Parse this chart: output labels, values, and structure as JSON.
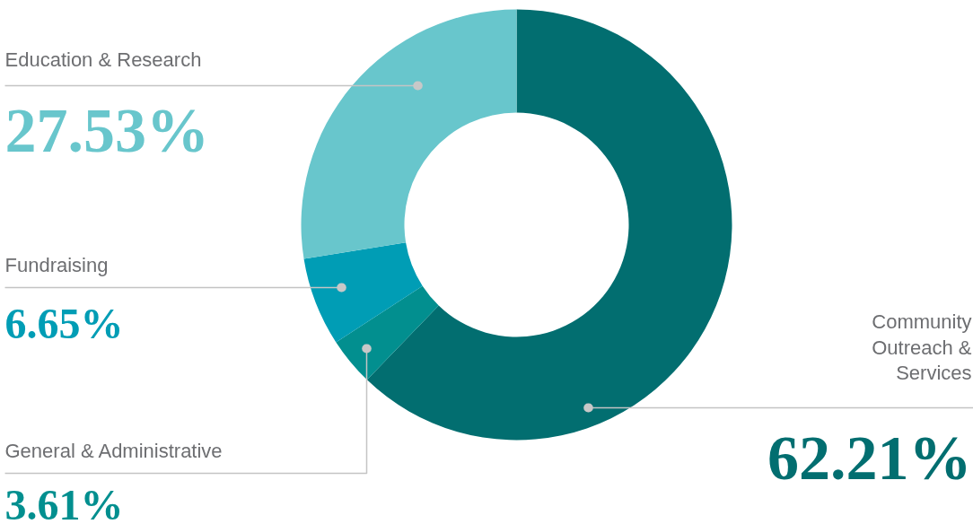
{
  "chart_data": {
    "type": "donut",
    "categories": [
      "Community Outreach & Services",
      "General & Administrative",
      "Fundraising",
      "Education & Research"
    ],
    "values": [
      62.21,
      3.61,
      6.65,
      27.53
    ],
    "colors": [
      "#026e70",
      "#028f8f",
      "#009db5",
      "#68c6cc"
    ],
    "value_labels": [
      "62.21%",
      "3.61%",
      "6.65%",
      "27.53%"
    ]
  }
}
